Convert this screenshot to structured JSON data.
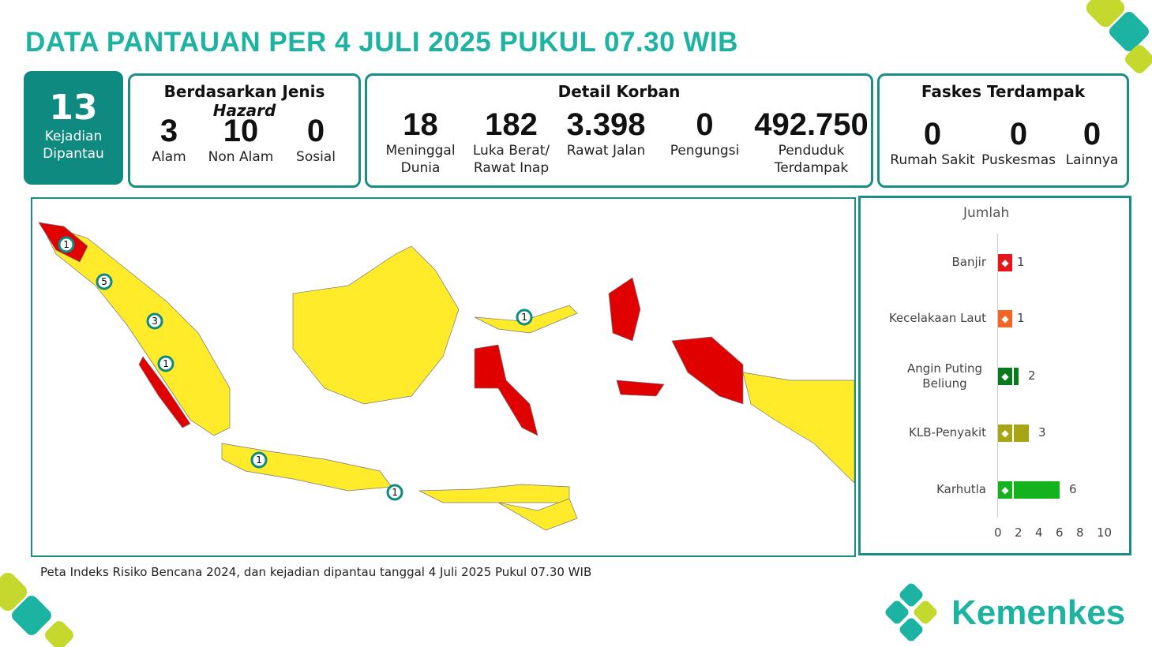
{
  "title": "DATA PANTAUAN PER 4 JULI 2025 PUKUL 07.30 WIB",
  "kejadian": {
    "value": "13",
    "label1": "Kejadian",
    "label2": "Dipantau"
  },
  "hazard": {
    "title": "Berdasarkan Jenis",
    "title_italic": "Hazard",
    "items": [
      {
        "value": "3",
        "label": "Alam"
      },
      {
        "value": "10",
        "label": "Non Alam"
      },
      {
        "value": "0",
        "label": "Sosial"
      }
    ]
  },
  "korban": {
    "title": "Detail Korban",
    "items": [
      {
        "value": "18",
        "l1": "Meninggal",
        "l2": "Dunia"
      },
      {
        "value": "182",
        "l1": "Luka Berat/",
        "l2": "Rawat Inap"
      },
      {
        "value": "3.398",
        "l1": "Rawat Jalan",
        "l2": ""
      },
      {
        "value": "0",
        "l1": "Pengungsi",
        "l2": ""
      },
      {
        "value": "492.750",
        "l1": "Penduduk",
        "l2": "Terdampak"
      }
    ]
  },
  "faskes": {
    "title": "Faskes Terdampak",
    "items": [
      {
        "value": "0",
        "label": "Rumah Sakit"
      },
      {
        "value": "0",
        "label": "Puskesmas"
      },
      {
        "value": "0",
        "label": "Lainnya"
      }
    ]
  },
  "map": {
    "colors": {
      "high": "#e00000",
      "medium": "#ffeb2a"
    },
    "markers": [
      "1",
      "5",
      "3",
      "1",
      "1",
      "1",
      "1"
    ]
  },
  "caption": "Peta Indeks Risiko Bencana 2024, dan kejadian dipantau tanggal 4 Juli 2025 Pukul 07.30 WIB",
  "chart_data": {
    "type": "bar",
    "title": "Jumlah",
    "categories": [
      "Banjir",
      "Kecelakaan Laut",
      "Angin Puting Beliung",
      "KLB-Penyakit",
      "Karhutla"
    ],
    "values": [
      1,
      1,
      2,
      3,
      6
    ],
    "colors": [
      "#e8141b",
      "#f26522",
      "#0a7a1e",
      "#a8a514",
      "#14b21c"
    ],
    "icons": [
      "flood-icon",
      "ship-icon",
      "tornado-icon",
      "virus-icon",
      "forest-fire-icon"
    ],
    "xlim": [
      0,
      10
    ],
    "ticks": [
      "0",
      "2",
      "4",
      "6",
      "8",
      "10"
    ]
  },
  "brand": "Kemenkes"
}
